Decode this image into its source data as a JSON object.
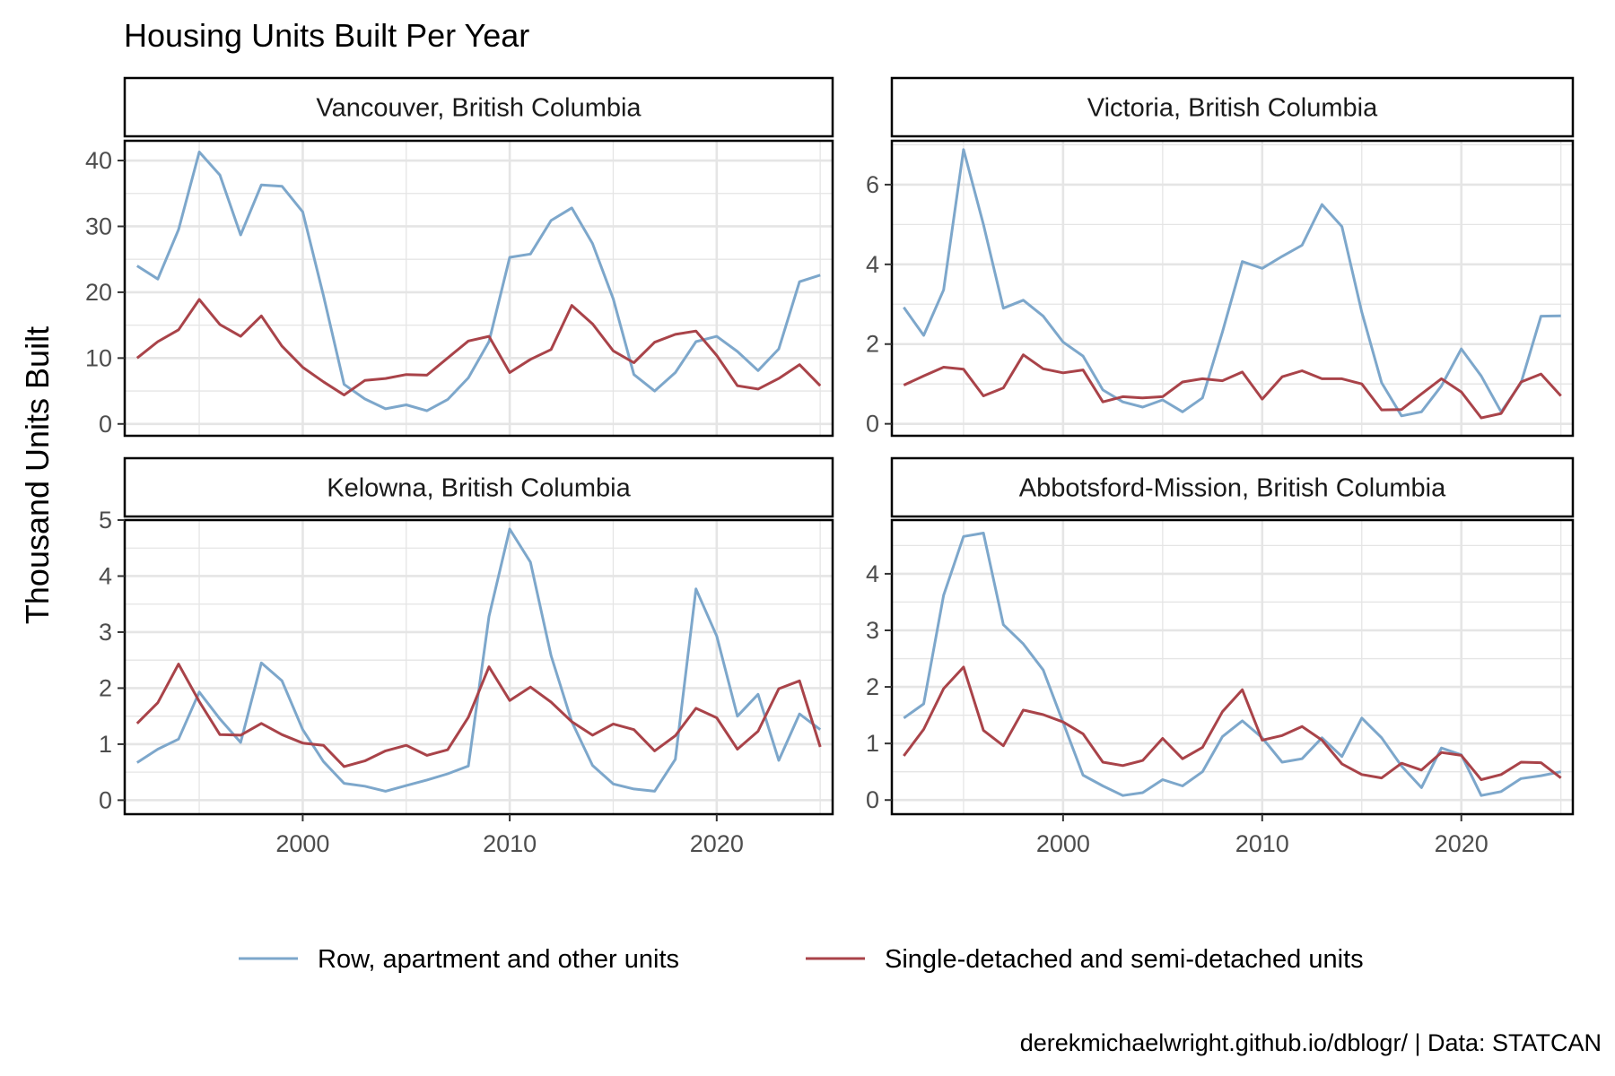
{
  "title": "Housing Units Built Per Year",
  "caption": "derekmichaelwright.github.io/dblogr/ | Data: STATCAN",
  "colors": {
    "row_apartment": "#7da7cb",
    "single_detached": "#a94349",
    "panel_border": "#000000",
    "grid": "#e5e5e5",
    "strip_bg": "#ffffff"
  },
  "chart_data": {
    "type": "line",
    "ylabel": "Thousand Units Built",
    "xlabel": "",
    "x_ticks": [
      2000,
      2010,
      2020
    ],
    "x_tick_labels": [
      "2000",
      "2010",
      "2020"
    ],
    "xlim": [
      1991.4,
      2025.6
    ],
    "legend_position": "bottom",
    "years": [
      1992,
      1993,
      1994,
      1995,
      1996,
      1997,
      1998,
      1999,
      2000,
      2001,
      2002,
      2003,
      2004,
      2005,
      2006,
      2007,
      2008,
      2009,
      2010,
      2011,
      2012,
      2013,
      2014,
      2015,
      2016,
      2017,
      2018,
      2019,
      2020,
      2021,
      2022,
      2023,
      2024,
      2025
    ],
    "series_names": [
      "Row, apartment and other units",
      "Single-detached and semi-detached units"
    ],
    "panels": [
      {
        "name": "Vancouver, British Columbia",
        "ylim": [
          -1.8,
          43
        ],
        "y_ticks": [
          0,
          10,
          20,
          30,
          40
        ],
        "series": [
          {
            "name": "Row, apartment and other units",
            "values": [
              24.0,
              22.0,
              29.5,
              41.3,
              37.8,
              28.7,
              36.3,
              36.1,
              32.2,
              19.5,
              6.0,
              3.8,
              2.3,
              2.9,
              2.0,
              3.7,
              7.0,
              12.5,
              25.3,
              25.8,
              30.9,
              32.8,
              27.4,
              19.0,
              7.5,
              5.0,
              7.8,
              12.5,
              13.3,
              11.0,
              8.1,
              11.4,
              21.6,
              22.6
            ]
          },
          {
            "name": "Single-detached and semi-detached units",
            "values": [
              10.0,
              12.5,
              14.3,
              18.9,
              15.1,
              13.3,
              16.4,
              11.8,
              8.6,
              6.4,
              4.4,
              6.6,
              6.9,
              7.5,
              7.4,
              10.0,
              12.6,
              13.3,
              7.8,
              9.8,
              11.3,
              18.0,
              15.2,
              11.1,
              9.3,
              12.4,
              13.6,
              14.1,
              10.4,
              5.8,
              5.3,
              6.9,
              9.0,
              5.8
            ]
          }
        ]
      },
      {
        "name": "Victoria, British Columbia",
        "ylim": [
          -0.3,
          7.1
        ],
        "y_ticks": [
          0,
          2,
          4,
          6
        ],
        "series": [
          {
            "name": "Row, apartment and other units",
            "values": [
              2.92,
              2.22,
              3.36,
              6.88,
              5.0,
              2.9,
              3.1,
              2.7,
              2.05,
              1.7,
              0.85,
              0.55,
              0.42,
              0.6,
              0.3,
              0.65,
              2.3,
              4.07,
              3.9,
              4.2,
              4.48,
              5.5,
              4.95,
              2.8,
              1.03,
              0.2,
              0.3,
              0.95,
              1.88,
              1.2,
              0.3,
              1.03,
              2.7,
              2.71
            ]
          },
          {
            "name": "Single-detached and semi-detached units",
            "values": [
              0.97,
              1.2,
              1.42,
              1.37,
              0.7,
              0.9,
              1.73,
              1.38,
              1.28,
              1.35,
              0.55,
              0.68,
              0.65,
              0.68,
              1.05,
              1.13,
              1.08,
              1.3,
              0.62,
              1.18,
              1.33,
              1.13,
              1.13,
              1.0,
              0.35,
              0.36,
              0.75,
              1.13,
              0.8,
              0.15,
              0.26,
              1.05,
              1.25,
              0.7
            ]
          }
        ]
      },
      {
        "name": "Kelowna, British Columbia",
        "ylim": [
          -0.25,
          5.0
        ],
        "y_ticks": [
          0,
          1,
          2,
          3,
          4,
          5
        ],
        "series": [
          {
            "name": "Row, apartment and other units",
            "values": [
              0.67,
              0.91,
              1.09,
              1.93,
              1.45,
              1.03,
              2.45,
              2.13,
              1.26,
              0.69,
              0.3,
              0.25,
              0.16,
              0.26,
              0.36,
              0.47,
              0.61,
              3.28,
              4.84,
              4.25,
              2.58,
              1.4,
              0.62,
              0.29,
              0.2,
              0.16,
              0.73,
              3.77,
              2.93,
              1.5,
              1.89,
              0.71,
              1.54,
              1.26
            ]
          },
          {
            "name": "Single-detached and semi-detached units",
            "values": [
              1.37,
              1.74,
              2.43,
              1.76,
              1.17,
              1.16,
              1.37,
              1.17,
              1.02,
              0.98,
              0.6,
              0.7,
              0.88,
              0.98,
              0.8,
              0.9,
              1.48,
              2.38,
              1.78,
              2.02,
              1.75,
              1.4,
              1.16,
              1.36,
              1.26,
              0.88,
              1.15,
              1.64,
              1.47,
              0.91,
              1.23,
              1.99,
              2.13,
              0.95
            ]
          }
        ]
      },
      {
        "name": "Abbotsford-Mission, British Columbia",
        "ylim": [
          -0.25,
          4.95
        ],
        "y_ticks": [
          0,
          1,
          2,
          3,
          4
        ],
        "series": [
          {
            "name": "Row, apartment and other units",
            "values": [
              1.45,
              1.7,
              3.62,
              4.66,
              4.72,
              3.1,
              2.76,
              2.3,
              1.37,
              0.44,
              0.25,
              0.08,
              0.13,
              0.36,
              0.25,
              0.5,
              1.12,
              1.4,
              1.1,
              0.67,
              0.73,
              1.1,
              0.77,
              1.45,
              1.1,
              0.6,
              0.22,
              0.92,
              0.8,
              0.08,
              0.15,
              0.38,
              0.43,
              0.5
            ]
          },
          {
            "name": "Single-detached and semi-detached units",
            "values": [
              0.78,
              1.25,
              1.97,
              2.35,
              1.23,
              0.96,
              1.59,
              1.51,
              1.38,
              1.17,
              0.67,
              0.61,
              0.7,
              1.09,
              0.73,
              0.93,
              1.56,
              1.95,
              1.06,
              1.14,
              1.3,
              1.06,
              0.64,
              0.45,
              0.39,
              0.65,
              0.53,
              0.84,
              0.79,
              0.36,
              0.45,
              0.67,
              0.66,
              0.39
            ]
          }
        ]
      }
    ]
  }
}
